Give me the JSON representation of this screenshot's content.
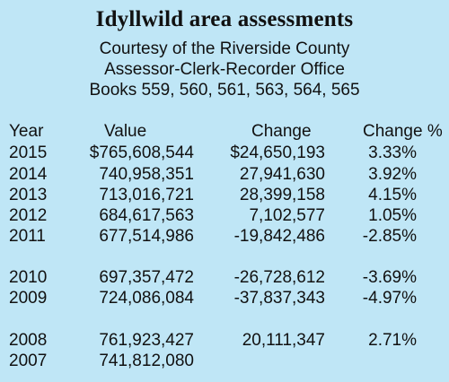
{
  "title": "Idyllwild area assessments",
  "subtitle_lines": [
    "Courtesy of the Riverside County",
    "Assessor-Clerk-Recorder Office",
    "Books 559, 560, 561, 563, 564, 565"
  ],
  "table": {
    "headers": [
      "Year",
      "Value",
      "Change",
      "Change %"
    ],
    "rows": [
      {
        "year": "2015",
        "value": "$765,608,544",
        "change": "$24,650,193",
        "pct": "3.33%"
      },
      {
        "year": "2014",
        "value": "740,958,351",
        "change": "27,941,630",
        "pct": "3.92%"
      },
      {
        "year": "2013",
        "value": "713,016,721",
        "change": "28,399,158",
        "pct": "4.15%"
      },
      {
        "year": "2012",
        "value": "684,617,563",
        "change": "7,102,577",
        "pct": "1.05%"
      },
      {
        "year": "2011",
        "value": "677,514,986",
        "change": "-19,842,486",
        "pct": "-2.85%"
      },
      {
        "year": "2010",
        "value": "697,357,472",
        "change": "-26,728,612",
        "pct": "-3.69%"
      },
      {
        "year": "2009",
        "value": "724,086,084",
        "change": "-37,837,343",
        "pct": "-4.97%"
      },
      {
        "year": "2008",
        "value": "761,923,427",
        "change": "20,111,347",
        "pct": "2.71%"
      },
      {
        "year": "2007",
        "value": "741,812,080",
        "change": "",
        "pct": ""
      }
    ]
  }
}
